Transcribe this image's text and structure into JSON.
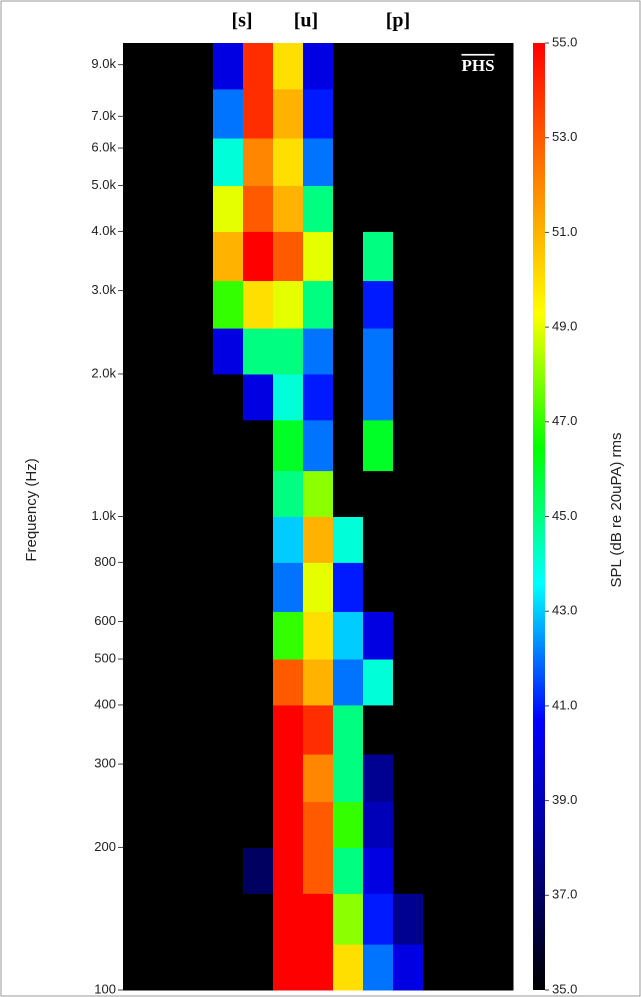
{
  "chart_data": {
    "type": "spectrogram",
    "ylabel": "Frequency (Hz)",
    "colorbar_label": "SPL (dB re 20uPA) rms",
    "annotations": [
      "[s]",
      "[u]",
      "[p]",
      "PHS"
    ],
    "log_y": true,
    "ylim": [
      100,
      10000
    ],
    "yticks": [
      100,
      200,
      300,
      400,
      500,
      600,
      800,
      {
        "value": 1000,
        "label": "1.0k"
      },
      {
        "value": 2000,
        "label": "2.0k"
      },
      {
        "value": 3000,
        "label": "3.0k"
      },
      {
        "value": 4000,
        "label": "4.0k"
      },
      {
        "value": 5000,
        "label": "5.0k"
      },
      {
        "value": 6000,
        "label": "6.0k"
      },
      {
        "value": 7000,
        "label": "7.0k"
      },
      {
        "value": 9000,
        "label": "9.0k"
      }
    ],
    "zlim": [
      35,
      55
    ],
    "zticks": [
      {
        "value": 35,
        "label": "35.0"
      },
      {
        "value": 37,
        "label": "37.0"
      },
      {
        "value": 39,
        "label": "39.0"
      },
      {
        "value": 41,
        "label": "41.0"
      },
      {
        "value": 43,
        "label": "43.0"
      },
      {
        "value": 45,
        "label": "45.0"
      },
      {
        "value": 47,
        "label": "47.0"
      },
      {
        "value": 49,
        "label": "49.0"
      },
      {
        "value": 51,
        "label": "51.0"
      },
      {
        "value": 53,
        "label": "53.0"
      },
      {
        "value": 55,
        "label": "55.0"
      }
    ],
    "colormap": [
      "#000000",
      "#00008b",
      "#0000ff",
      "#00ffff",
      "#00ff00",
      "#ffff00",
      "#ff8000",
      "#ff0000"
    ],
    "ybins": [
      100,
      125,
      160,
      200,
      250,
      315,
      400,
      500,
      630,
      800,
      1000,
      1250,
      1600,
      2000,
      2500,
      3150,
      4000,
      5000,
      6300,
      8000,
      10000
    ],
    "z": [
      [
        35,
        35,
        35,
        35,
        35,
        55,
        55,
        50,
        42,
        40,
        35,
        35,
        35
      ],
      [
        35,
        35,
        35,
        35,
        35,
        55,
        55,
        48,
        41,
        38,
        35,
        35,
        35
      ],
      [
        35,
        35,
        35,
        35,
        37,
        55,
        53,
        45,
        40,
        35,
        35,
        35,
        35
      ],
      [
        35,
        35,
        35,
        35,
        35,
        55,
        53,
        47,
        39,
        35,
        35,
        35,
        35
      ],
      [
        35,
        35,
        35,
        35,
        35,
        55,
        52,
        45,
        38,
        35,
        35,
        35,
        35
      ],
      [
        35,
        35,
        35,
        35,
        35,
        55,
        54,
        45,
        35,
        35,
        35,
        35,
        35
      ],
      [
        35,
        35,
        35,
        35,
        35,
        53,
        51,
        42,
        44,
        35,
        35,
        35,
        35
      ],
      [
        35,
        35,
        35,
        35,
        35,
        47,
        50,
        43,
        40,
        35,
        35,
        35,
        35
      ],
      [
        35,
        35,
        35,
        35,
        35,
        42,
        49,
        41,
        35,
        35,
        35,
        35,
        35
      ],
      [
        35,
        35,
        35,
        35,
        35,
        43,
        51,
        44,
        35,
        35,
        35,
        35,
        35
      ],
      [
        35,
        35,
        35,
        35,
        35,
        45,
        48,
        35,
        35,
        35,
        35,
        35,
        35
      ],
      [
        35,
        35,
        35,
        35,
        35,
        46,
        42,
        35,
        46,
        35,
        35,
        35,
        35
      ],
      [
        35,
        35,
        35,
        35,
        40,
        44,
        41,
        35,
        42,
        35,
        35,
        35,
        35
      ],
      [
        35,
        35,
        35,
        40,
        45,
        45,
        42,
        35,
        42,
        35,
        35,
        35,
        35
      ],
      [
        35,
        35,
        35,
        47,
        50,
        49,
        45,
        35,
        41,
        35,
        35,
        35,
        35
      ],
      [
        35,
        35,
        35,
        51,
        55,
        53,
        49,
        35,
        45,
        35,
        35,
        35,
        35
      ],
      [
        35,
        35,
        35,
        49,
        53,
        51,
        45,
        35,
        35,
        35,
        35,
        35,
        35
      ],
      [
        35,
        35,
        35,
        44,
        52,
        50,
        42,
        35,
        35,
        35,
        35,
        35,
        35
      ],
      [
        35,
        35,
        35,
        42,
        54,
        51,
        41,
        35,
        35,
        35,
        35,
        35,
        35
      ],
      [
        35,
        35,
        35,
        40,
        54,
        50,
        40,
        35,
        35,
        35,
        35,
        35,
        35
      ]
    ]
  }
}
